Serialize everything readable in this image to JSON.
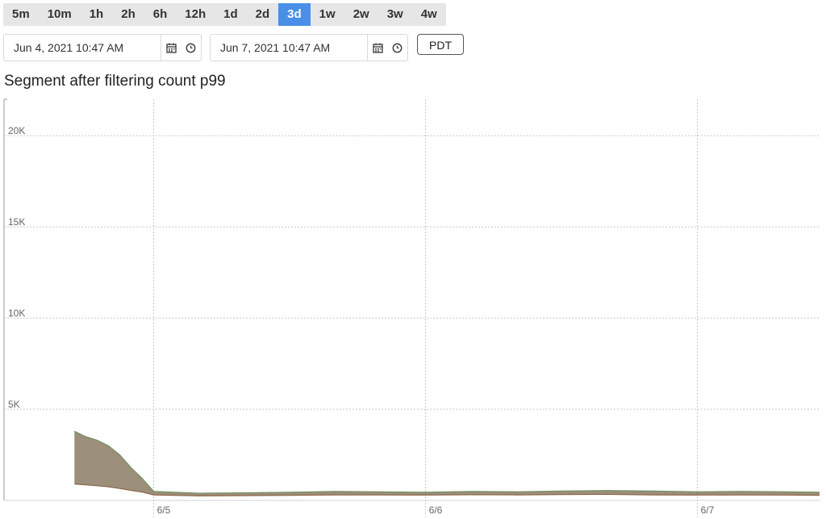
{
  "range_buttons": [
    {
      "label": "5m",
      "active": false
    },
    {
      "label": "10m",
      "active": false
    },
    {
      "label": "1h",
      "active": false
    },
    {
      "label": "2h",
      "active": false
    },
    {
      "label": "6h",
      "active": false
    },
    {
      "label": "12h",
      "active": false
    },
    {
      "label": "1d",
      "active": false
    },
    {
      "label": "2d",
      "active": false
    },
    {
      "label": "3d",
      "active": true
    },
    {
      "label": "1w",
      "active": false
    },
    {
      "label": "2w",
      "active": false
    },
    {
      "label": "3w",
      "active": false
    },
    {
      "label": "4w",
      "active": false
    }
  ],
  "start_date": {
    "value": "Jun 4, 2021 10:47 AM"
  },
  "end_date": {
    "value": "Jun 7, 2021 10:47 AM"
  },
  "timezone_button": "PDT",
  "icons": {
    "calendar": "calendar-icon",
    "clock": "clock-icon"
  },
  "colors": {
    "active_range": "#4a8fe7",
    "series_main": "#7a6a4f"
  },
  "chart_data": {
    "type": "line",
    "title": "Segment after filtering count p99",
    "x_range": [
      "2021-06-04 10:47",
      "2021-06-07 10:47"
    ],
    "x_ticks": [
      {
        "label": "6/5",
        "x": "2021-06-05 00:00"
      },
      {
        "label": "6/6",
        "x": "2021-06-06 00:00"
      },
      {
        "label": "6/7",
        "x": "2021-06-07 00:00"
      }
    ],
    "y_ticks": [
      {
        "label": "5K",
        "value": 5000
      },
      {
        "label": "10K",
        "value": 10000
      },
      {
        "label": "15K",
        "value": 15000
      },
      {
        "label": "20K",
        "value": 20000
      }
    ],
    "ylim": [
      0,
      22000
    ],
    "grid": true,
    "legend": "none",
    "x": [
      "2021-06-04 17:00",
      "2021-06-04 18:00",
      "2021-06-04 19:00",
      "2021-06-04 20:00",
      "2021-06-04 21:00",
      "2021-06-04 22:00",
      "2021-06-04 23:00",
      "2021-06-05 00:00",
      "2021-06-05 04:00",
      "2021-06-05 08:00",
      "2021-06-05 12:00",
      "2021-06-05 16:00",
      "2021-06-05 20:00",
      "2021-06-06 00:00",
      "2021-06-06 04:00",
      "2021-06-06 08:00",
      "2021-06-06 12:00",
      "2021-06-06 16:00",
      "2021-06-06 20:00",
      "2021-06-07 00:00",
      "2021-06-07 04:00",
      "2021-06-07 08:00",
      "2021-06-07 10:47"
    ],
    "series": [
      {
        "values": [
          3800,
          3500,
          3300,
          3000,
          2500,
          1800,
          1200,
          500,
          400,
          420,
          450,
          500,
          480,
          450,
          500,
          480,
          520,
          550,
          520,
          480,
          500,
          480,
          450
        ]
      },
      {
        "values": [
          900,
          850,
          800,
          750,
          650,
          550,
          450,
          300,
          250,
          260,
          280,
          300,
          300,
          290,
          310,
          300,
          320,
          330,
          300,
          290,
          300,
          290,
          280
        ]
      }
    ]
  }
}
